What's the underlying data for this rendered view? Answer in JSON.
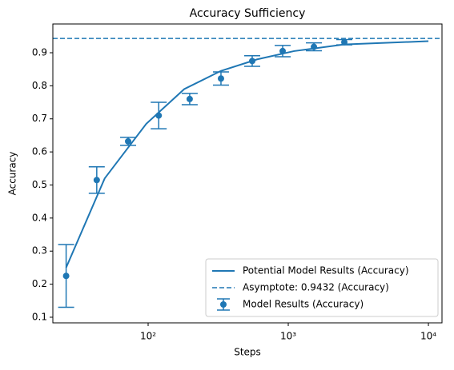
{
  "chart_data": {
    "type": "line",
    "title": "Accuracy Sufficiency",
    "x_label": "Steps",
    "y_label": "Accuracy",
    "x_scale": "log",
    "xlim": [
      20.9,
      12500
    ],
    "ylim": [
      0.083,
      0.987
    ],
    "xticks": [
      {
        "value": 100,
        "label": "10²"
      },
      {
        "value": 1000,
        "label": "10³"
      },
      {
        "value": 10000,
        "label": "10⁴"
      }
    ],
    "yticks": [
      0.1,
      0.2,
      0.3,
      0.4,
      0.5,
      0.6,
      0.7,
      0.8,
      0.9
    ],
    "legend": "lower right",
    "series": [
      {
        "name": "Potential Model Results (Accuracy)",
        "kind": "line",
        "color": "#1f77b4",
        "x": [
          26,
          49,
          97,
          181,
          330,
          600,
          1100,
          2500,
          10000
        ],
        "values": [
          0.25,
          0.52,
          0.685,
          0.79,
          0.845,
          0.88,
          0.905,
          0.925,
          0.935
        ]
      },
      {
        "name": "Asymptote: 0.9432 (Accuracy)",
        "kind": "hline",
        "color": "#1f77b4",
        "value": 0.9432
      },
      {
        "name": "Model Results (Accuracy)",
        "kind": "errorbar",
        "color": "#1f77b4",
        "x": [
          26,
          43,
          72,
          119,
          198,
          331,
          553,
          912,
          1524,
          2512
        ],
        "values": [
          0.225,
          0.515,
          0.632,
          0.71,
          0.76,
          0.822,
          0.875,
          0.905,
          0.918,
          0.932
        ],
        "errors": [
          0.095,
          0.04,
          0.012,
          0.04,
          0.017,
          0.02,
          0.016,
          0.017,
          0.012,
          0.008
        ]
      }
    ]
  }
}
